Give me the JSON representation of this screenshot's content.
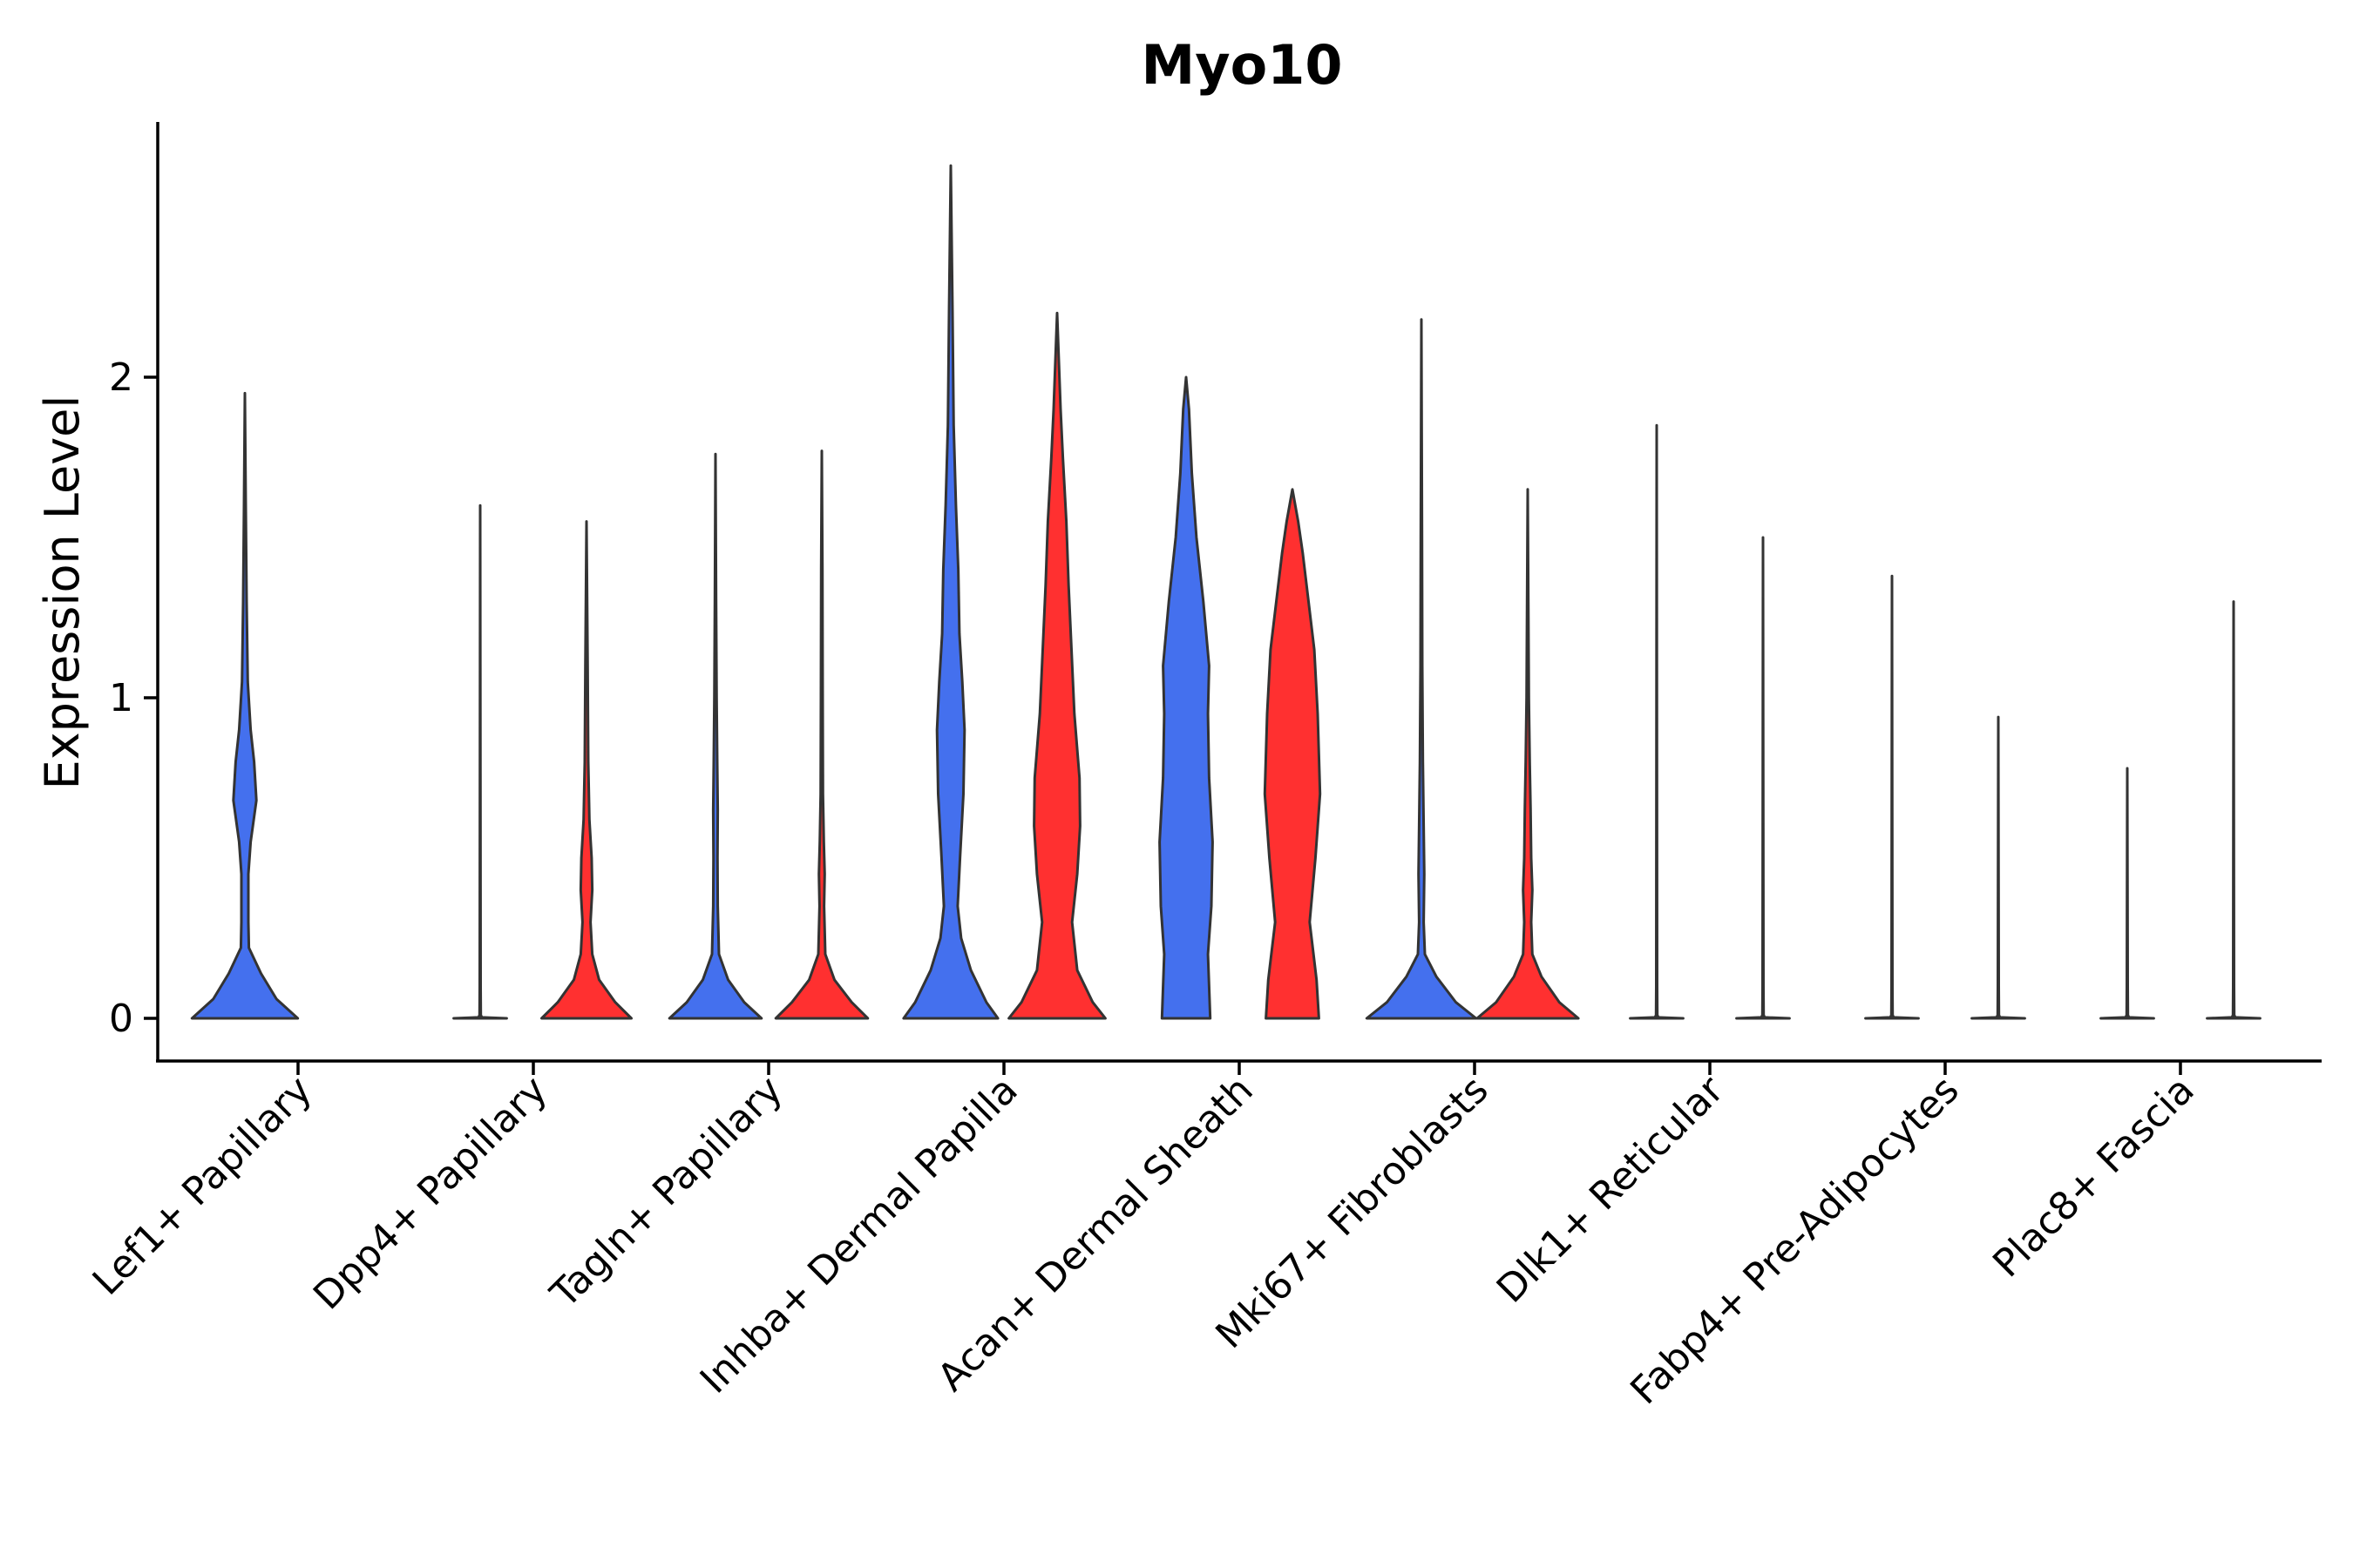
{
  "chart_data": {
    "type": "violin",
    "title": "Myo10",
    "xlabel": "",
    "ylabel": "Expression Level",
    "ylim": [
      -0.13,
      2.8
    ],
    "yticks": [
      0,
      1,
      2
    ],
    "ytick_labels": [
      "0",
      "1",
      "2"
    ],
    "series_colors": {
      "group1": "#4470EE",
      "group2": "#FF3030"
    },
    "categories": [
      "Lef1+ Papillary",
      "Dpp4+ Papillary",
      "Tagln+ Papillary",
      "Inhba+ Dermal Papilla",
      "Acan+ Dermal Sheath",
      "Mki67+ Fibroblasts",
      "Dlk1+ Reticular",
      "Fabp4+ Pre-Adipocytes",
      "Plac8+ Fascia"
    ],
    "violins": [
      {
        "category": 0,
        "side": "left",
        "color": "#4470EE",
        "max": 1.95,
        "profile": [
          [
            0,
            0.92
          ],
          [
            0.06,
            0.55
          ],
          [
            0.14,
            0.28
          ],
          [
            0.22,
            0.07
          ],
          [
            0.3,
            0.06
          ],
          [
            0.45,
            0.06
          ],
          [
            0.55,
            0.1
          ],
          [
            0.68,
            0.2
          ],
          [
            0.8,
            0.16
          ],
          [
            0.9,
            0.1
          ],
          [
            1.05,
            0.05
          ],
          [
            1.3,
            0.03
          ],
          [
            1.6,
            0.015
          ],
          [
            1.95,
            0
          ]
        ]
      },
      {
        "category": 0,
        "side": "right",
        "color": "#4470EE",
        "max": 0,
        "profile": []
      },
      {
        "category": 1,
        "side": "left",
        "color": "#4470EE",
        "max": 1.6,
        "profile": [
          [
            0,
            0.46
          ],
          [
            0.003,
            0.03
          ],
          [
            0.01,
            0.01
          ],
          [
            0.1,
            0.008
          ],
          [
            1.6,
            0
          ]
        ]
      },
      {
        "category": 1,
        "side": "right",
        "color": "#FF3030",
        "max": 1.55,
        "profile": [
          [
            0,
            0.78
          ],
          [
            0.05,
            0.5
          ],
          [
            0.12,
            0.22
          ],
          [
            0.2,
            0.1
          ],
          [
            0.3,
            0.07
          ],
          [
            0.4,
            0.1
          ],
          [
            0.5,
            0.09
          ],
          [
            0.62,
            0.05
          ],
          [
            0.8,
            0.03
          ],
          [
            1.1,
            0.02
          ],
          [
            1.55,
            0
          ]
        ]
      },
      {
        "category": 2,
        "side": "left",
        "color": "#4470EE",
        "max": 1.76,
        "profile": [
          [
            0,
            0.8
          ],
          [
            0.05,
            0.5
          ],
          [
            0.12,
            0.22
          ],
          [
            0.2,
            0.06
          ],
          [
            0.35,
            0.04
          ],
          [
            0.5,
            0.035
          ],
          [
            0.65,
            0.04
          ],
          [
            0.8,
            0.03
          ],
          [
            1.0,
            0.02
          ],
          [
            1.3,
            0.01
          ],
          [
            1.76,
            0
          ]
        ]
      },
      {
        "category": 2,
        "side": "right",
        "color": "#FF3030",
        "max": 1.77,
        "profile": [
          [
            0,
            0.8
          ],
          [
            0.05,
            0.52
          ],
          [
            0.12,
            0.22
          ],
          [
            0.2,
            0.06
          ],
          [
            0.35,
            0.04
          ],
          [
            0.45,
            0.05
          ],
          [
            0.55,
            0.035
          ],
          [
            0.7,
            0.02
          ],
          [
            1.0,
            0.015
          ],
          [
            1.4,
            0.01
          ],
          [
            1.77,
            0
          ]
        ]
      },
      {
        "category": 3,
        "side": "left",
        "color": "#4470EE",
        "max": 2.66,
        "profile": [
          [
            0,
            0.82
          ],
          [
            0.05,
            0.62
          ],
          [
            0.15,
            0.35
          ],
          [
            0.25,
            0.18
          ],
          [
            0.35,
            0.12
          ],
          [
            0.5,
            0.16
          ],
          [
            0.7,
            0.22
          ],
          [
            0.9,
            0.24
          ],
          [
            1.05,
            0.2
          ],
          [
            1.2,
            0.15
          ],
          [
            1.4,
            0.13
          ],
          [
            1.6,
            0.09
          ],
          [
            1.85,
            0.05
          ],
          [
            2.2,
            0.03
          ],
          [
            2.66,
            0
          ]
        ]
      },
      {
        "category": 3,
        "side": "right",
        "color": "#FF3030",
        "max": 2.2,
        "profile": [
          [
            0,
            0.84
          ],
          [
            0.05,
            0.62
          ],
          [
            0.15,
            0.35
          ],
          [
            0.3,
            0.26
          ],
          [
            0.45,
            0.35
          ],
          [
            0.6,
            0.4
          ],
          [
            0.75,
            0.39
          ],
          [
            0.95,
            0.3
          ],
          [
            1.15,
            0.25
          ],
          [
            1.35,
            0.2
          ],
          [
            1.55,
            0.16
          ],
          [
            1.75,
            0.1
          ],
          [
            1.9,
            0.06
          ],
          [
            2.2,
            0
          ]
        ]
      },
      {
        "category": 4,
        "side": "left",
        "color": "#4470EE",
        "max": 2.0,
        "profile": [
          [
            0,
            0.42
          ],
          [
            0.2,
            0.38
          ],
          [
            0.35,
            0.44
          ],
          [
            0.55,
            0.46
          ],
          [
            0.75,
            0.4
          ],
          [
            0.95,
            0.38
          ],
          [
            1.1,
            0.4
          ],
          [
            1.3,
            0.3
          ],
          [
            1.5,
            0.18
          ],
          [
            1.7,
            0.1
          ],
          [
            1.9,
            0.05
          ],
          [
            2.0,
            0
          ]
        ]
      },
      {
        "category": 4,
        "side": "right",
        "color": "#FF3030",
        "max": 1.65,
        "profile": [
          [
            0,
            0.46
          ],
          [
            0.12,
            0.42
          ],
          [
            0.3,
            0.3
          ],
          [
            0.5,
            0.4
          ],
          [
            0.7,
            0.48
          ],
          [
            0.95,
            0.44
          ],
          [
            1.15,
            0.38
          ],
          [
            1.3,
            0.28
          ],
          [
            1.45,
            0.18
          ],
          [
            1.55,
            0.1
          ],
          [
            1.65,
            0
          ]
        ]
      },
      {
        "category": 5,
        "side": "left",
        "color": "#4470EE",
        "max": 2.18,
        "profile": [
          [
            0,
            0.95
          ],
          [
            0.05,
            0.6
          ],
          [
            0.13,
            0.26
          ],
          [
            0.2,
            0.06
          ],
          [
            0.3,
            0.04
          ],
          [
            0.45,
            0.05
          ],
          [
            0.6,
            0.04
          ],
          [
            0.8,
            0.025
          ],
          [
            1.1,
            0.015
          ],
          [
            1.5,
            0.01
          ],
          [
            2.18,
            0
          ]
        ]
      },
      {
        "category": 5,
        "side": "right",
        "color": "#FF3030",
        "max": 1.65,
        "profile": [
          [
            0,
            0.88
          ],
          [
            0.05,
            0.55
          ],
          [
            0.13,
            0.24
          ],
          [
            0.2,
            0.08
          ],
          [
            0.3,
            0.06
          ],
          [
            0.4,
            0.08
          ],
          [
            0.5,
            0.06
          ],
          [
            0.65,
            0.05
          ],
          [
            0.8,
            0.035
          ],
          [
            1.0,
            0.02
          ],
          [
            1.3,
            0.01
          ],
          [
            1.65,
            0
          ]
        ]
      },
      {
        "category": 6,
        "side": "left",
        "color": "#4470EE",
        "max": 1.85,
        "profile": [
          [
            0,
            0.46
          ],
          [
            0.003,
            0.03
          ],
          [
            0.01,
            0.01
          ],
          [
            0.1,
            0.008
          ],
          [
            1.85,
            0
          ]
        ]
      },
      {
        "category": 6,
        "side": "right",
        "color": "#FF3030",
        "max": 1.5,
        "profile": [
          [
            0,
            0.46
          ],
          [
            0.003,
            0.03
          ],
          [
            0.01,
            0.01
          ],
          [
            0.1,
            0.008
          ],
          [
            1.5,
            0
          ]
        ]
      },
      {
        "category": 7,
        "side": "left",
        "color": "#4470EE",
        "max": 1.38,
        "profile": [
          [
            0,
            0.46
          ],
          [
            0.003,
            0.03
          ],
          [
            0.01,
            0.01
          ],
          [
            0.1,
            0.008
          ],
          [
            1.38,
            0
          ]
        ]
      },
      {
        "category": 7,
        "side": "right",
        "color": "#FF3030",
        "max": 0.94,
        "profile": [
          [
            0,
            0.46
          ],
          [
            0.003,
            0.03
          ],
          [
            0.01,
            0.01
          ],
          [
            0.1,
            0.008
          ],
          [
            0.94,
            0
          ]
        ]
      },
      {
        "category": 8,
        "side": "left",
        "color": "#4470EE",
        "max": 0.78,
        "profile": [
          [
            0,
            0.46
          ],
          [
            0.003,
            0.03
          ],
          [
            0.01,
            0.01
          ],
          [
            0.1,
            0.008
          ],
          [
            0.78,
            0
          ]
        ]
      },
      {
        "category": 8,
        "side": "right",
        "color": "#FF3030",
        "max": 1.3,
        "profile": [
          [
            0,
            0.46
          ],
          [
            0.003,
            0.03
          ],
          [
            0.01,
            0.01
          ],
          [
            0.1,
            0.008
          ],
          [
            1.3,
            0
          ]
        ]
      }
    ]
  }
}
